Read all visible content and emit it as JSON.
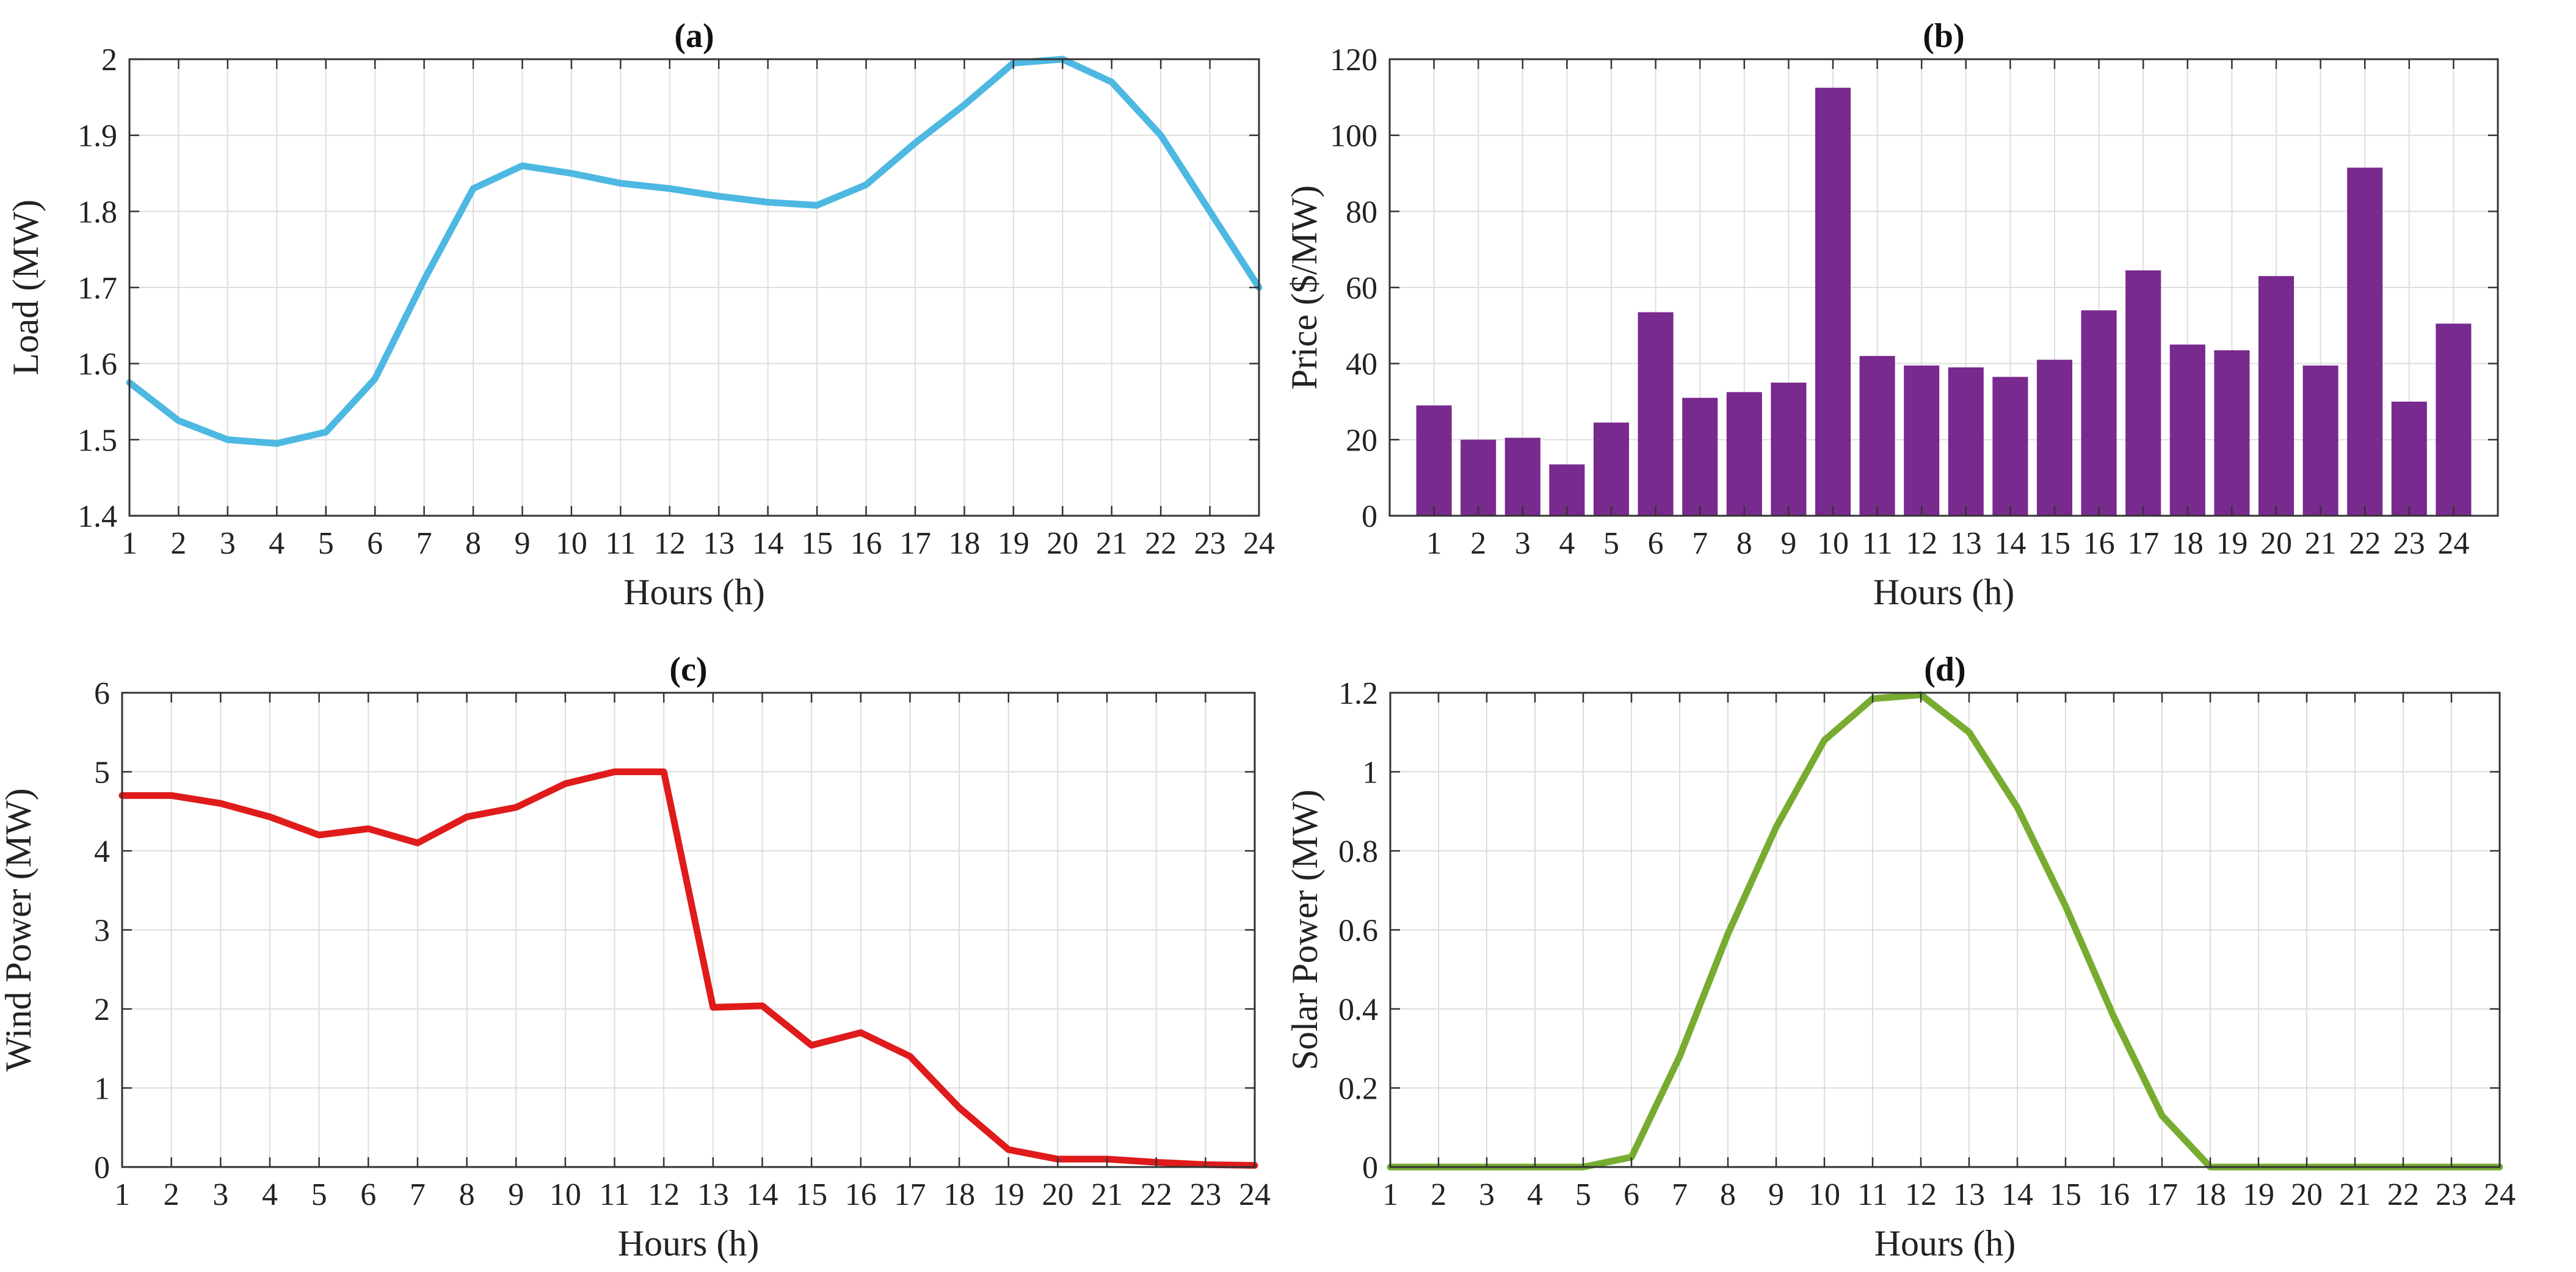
{
  "chart_data": [
    {
      "id": "a",
      "type": "line",
      "title": "(a)",
      "xlabel": "Hours (h)",
      "ylabel": "Load (MW)",
      "x": [
        1,
        2,
        3,
        4,
        5,
        6,
        7,
        8,
        9,
        10,
        11,
        12,
        13,
        14,
        15,
        16,
        17,
        18,
        19,
        20,
        21,
        22,
        23,
        24
      ],
      "series": [
        {
          "name": "Load",
          "values": [
            1.575,
            1.525,
            1.5,
            1.495,
            1.51,
            1.58,
            1.71,
            1.83,
            1.86,
            1.85,
            1.837,
            1.83,
            1.82,
            1.812,
            1.808,
            1.835,
            1.89,
            1.94,
            1.995,
            2.0,
            1.97,
            1.9,
            1.8,
            1.7
          ],
          "color": "#4db8e2"
        }
      ],
      "xlim": [
        1,
        24
      ],
      "ylim": [
        1.4,
        2.0
      ],
      "xticks": [
        "1",
        "2",
        "3",
        "4",
        "5",
        "6",
        "7",
        "8",
        "9",
        "10",
        "11",
        "12",
        "13",
        "14",
        "15",
        "16",
        "17",
        "18",
        "19",
        "20",
        "21",
        "22",
        "23",
        "24"
      ],
      "yticks": [
        "1.4",
        "1.5",
        "1.6",
        "1.7",
        "1.8",
        "1.9",
        "2"
      ],
      "grid": true
    },
    {
      "id": "b",
      "type": "bar",
      "title": "(b)",
      "xlabel": "Hours (h)",
      "ylabel": "Price ($/MW)",
      "categories": [
        "1",
        "2",
        "3",
        "4",
        "5",
        "6",
        "7",
        "8",
        "9",
        "10",
        "11",
        "12",
        "13",
        "14",
        "15",
        "16",
        "17",
        "18",
        "19",
        "20",
        "21",
        "22",
        "23",
        "24"
      ],
      "values": [
        29,
        20,
        20.5,
        13.5,
        24.5,
        53.5,
        31,
        32.5,
        35,
        112.5,
        42,
        39.5,
        39,
        36.5,
        41,
        54,
        64.5,
        45,
        43.5,
        63,
        39.5,
        91.5,
        30,
        50.5
      ],
      "color": "#782a8e",
      "ylim": [
        0,
        120
      ],
      "yticks": [
        "0",
        "20",
        "40",
        "60",
        "80",
        "100",
        "120"
      ],
      "grid": true
    },
    {
      "id": "c",
      "type": "line",
      "title": "(c)",
      "xlabel": "Hours (h)",
      "ylabel": "Wind Power (MW)",
      "x": [
        1,
        2,
        3,
        4,
        5,
        6,
        7,
        8,
        9,
        10,
        11,
        12,
        13,
        14,
        15,
        16,
        17,
        18,
        19,
        20,
        21,
        22,
        23,
        24
      ],
      "series": [
        {
          "name": "Wind Power",
          "values": [
            4.7,
            4.7,
            4.6,
            4.43,
            4.2,
            4.28,
            4.1,
            4.43,
            4.55,
            4.85,
            5.0,
            5.0,
            2.02,
            2.04,
            1.54,
            1.7,
            1.4,
            0.75,
            0.22,
            0.1,
            0.1,
            0.06,
            0.03,
            0.02
          ],
          "color": "#e01b1b"
        }
      ],
      "xlim": [
        1,
        24
      ],
      "ylim": [
        0,
        6
      ],
      "xticks": [
        "1",
        "2",
        "3",
        "4",
        "5",
        "6",
        "7",
        "8",
        "9",
        "10",
        "11",
        "12",
        "13",
        "14",
        "15",
        "16",
        "17",
        "18",
        "19",
        "20",
        "21",
        "22",
        "23",
        "24"
      ],
      "yticks": [
        "0",
        "1",
        "2",
        "3",
        "4",
        "5",
        "6"
      ],
      "grid": true
    },
    {
      "id": "d",
      "type": "line",
      "title": "(d)",
      "xlabel": "Hours (h)",
      "ylabel": "Solar Power (MW)",
      "x": [
        1,
        2,
        3,
        4,
        5,
        6,
        7,
        8,
        9,
        10,
        11,
        12,
        13,
        14,
        15,
        16,
        17,
        18,
        19,
        20,
        21,
        22,
        23,
        24
      ],
      "series": [
        {
          "name": "Solar Power",
          "values": [
            0,
            0,
            0,
            0,
            0,
            0.025,
            0.28,
            0.59,
            0.86,
            1.08,
            1.185,
            1.195,
            1.1,
            0.91,
            0.66,
            0.38,
            0.13,
            0,
            0,
            0,
            0,
            0,
            0,
            0
          ],
          "color": "#77ac30"
        }
      ],
      "xlim": [
        1,
        24
      ],
      "ylim": [
        0,
        1.2
      ],
      "xticks": [
        "1",
        "2",
        "3",
        "4",
        "5",
        "6",
        "7",
        "8",
        "9",
        "10",
        "11",
        "12",
        "13",
        "14",
        "15",
        "16",
        "17",
        "18",
        "19",
        "20",
        "21",
        "22",
        "23",
        "24"
      ],
      "yticks": [
        "0",
        "0.2",
        "0.4",
        "0.6",
        "0.8",
        "1",
        "1.2"
      ],
      "grid": true
    }
  ]
}
